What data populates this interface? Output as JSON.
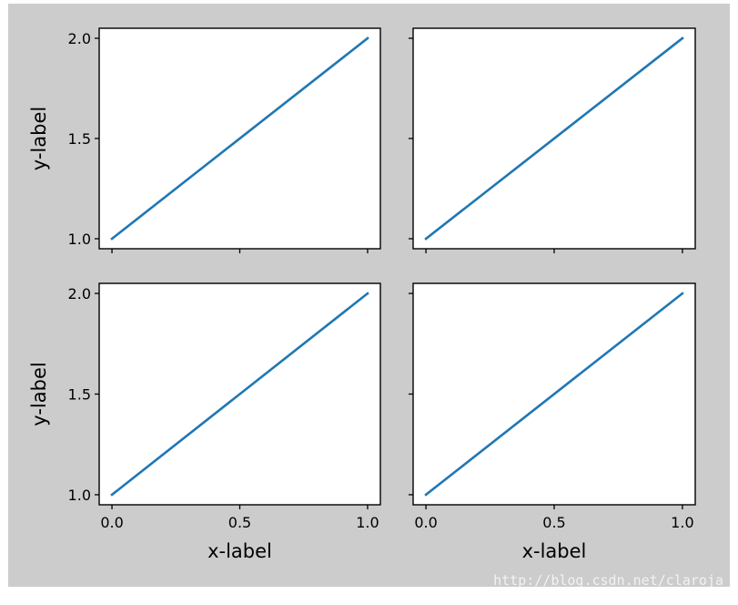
{
  "figure": {
    "background": "#cccccc",
    "axes_background": "#ffffff",
    "line_color": "#1f77b4",
    "watermark": "http://blog.csdn.net/claroja"
  },
  "chart_data": [
    {
      "type": "line",
      "subplot": "top-left",
      "x": [
        0,
        1
      ],
      "series": [
        {
          "values": [
            1,
            2
          ]
        }
      ],
      "xlim": [
        -0.05,
        1.05
      ],
      "ylim": [
        0.95,
        2.05
      ],
      "xticks": [
        0.0,
        0.5,
        1.0
      ],
      "yticks": [
        1.0,
        1.5,
        2.0
      ],
      "show_xticklabels": false,
      "show_yticklabels": true,
      "xlabel": "",
      "ylabel": "y-label",
      "grid": false
    },
    {
      "type": "line",
      "subplot": "top-right",
      "x": [
        0,
        1
      ],
      "series": [
        {
          "values": [
            1,
            2
          ]
        }
      ],
      "xlim": [
        -0.05,
        1.05
      ],
      "ylim": [
        0.95,
        2.05
      ],
      "xticks": [
        0.0,
        0.5,
        1.0
      ],
      "yticks": [
        1.0,
        1.5,
        2.0
      ],
      "show_xticklabels": false,
      "show_yticklabels": false,
      "xlabel": "",
      "ylabel": "",
      "grid": false
    },
    {
      "type": "line",
      "subplot": "bottom-left",
      "x": [
        0,
        1
      ],
      "series": [
        {
          "values": [
            1,
            2
          ]
        }
      ],
      "xlim": [
        -0.05,
        1.05
      ],
      "ylim": [
        0.95,
        2.05
      ],
      "xticks": [
        0.0,
        0.5,
        1.0
      ],
      "yticks": [
        1.0,
        1.5,
        2.0
      ],
      "show_xticklabels": true,
      "show_yticklabels": true,
      "xlabel": "x-label",
      "ylabel": "y-label",
      "grid": false
    },
    {
      "type": "line",
      "subplot": "bottom-right",
      "x": [
        0,
        1
      ],
      "series": [
        {
          "values": [
            1,
            2
          ]
        }
      ],
      "xlim": [
        -0.05,
        1.05
      ],
      "ylim": [
        0.95,
        2.05
      ],
      "xticks": [
        0.0,
        0.5,
        1.0
      ],
      "yticks": [
        1.0,
        1.5,
        2.0
      ],
      "show_xticklabels": true,
      "show_yticklabels": false,
      "xlabel": "x-label",
      "ylabel": "",
      "grid": false
    }
  ]
}
